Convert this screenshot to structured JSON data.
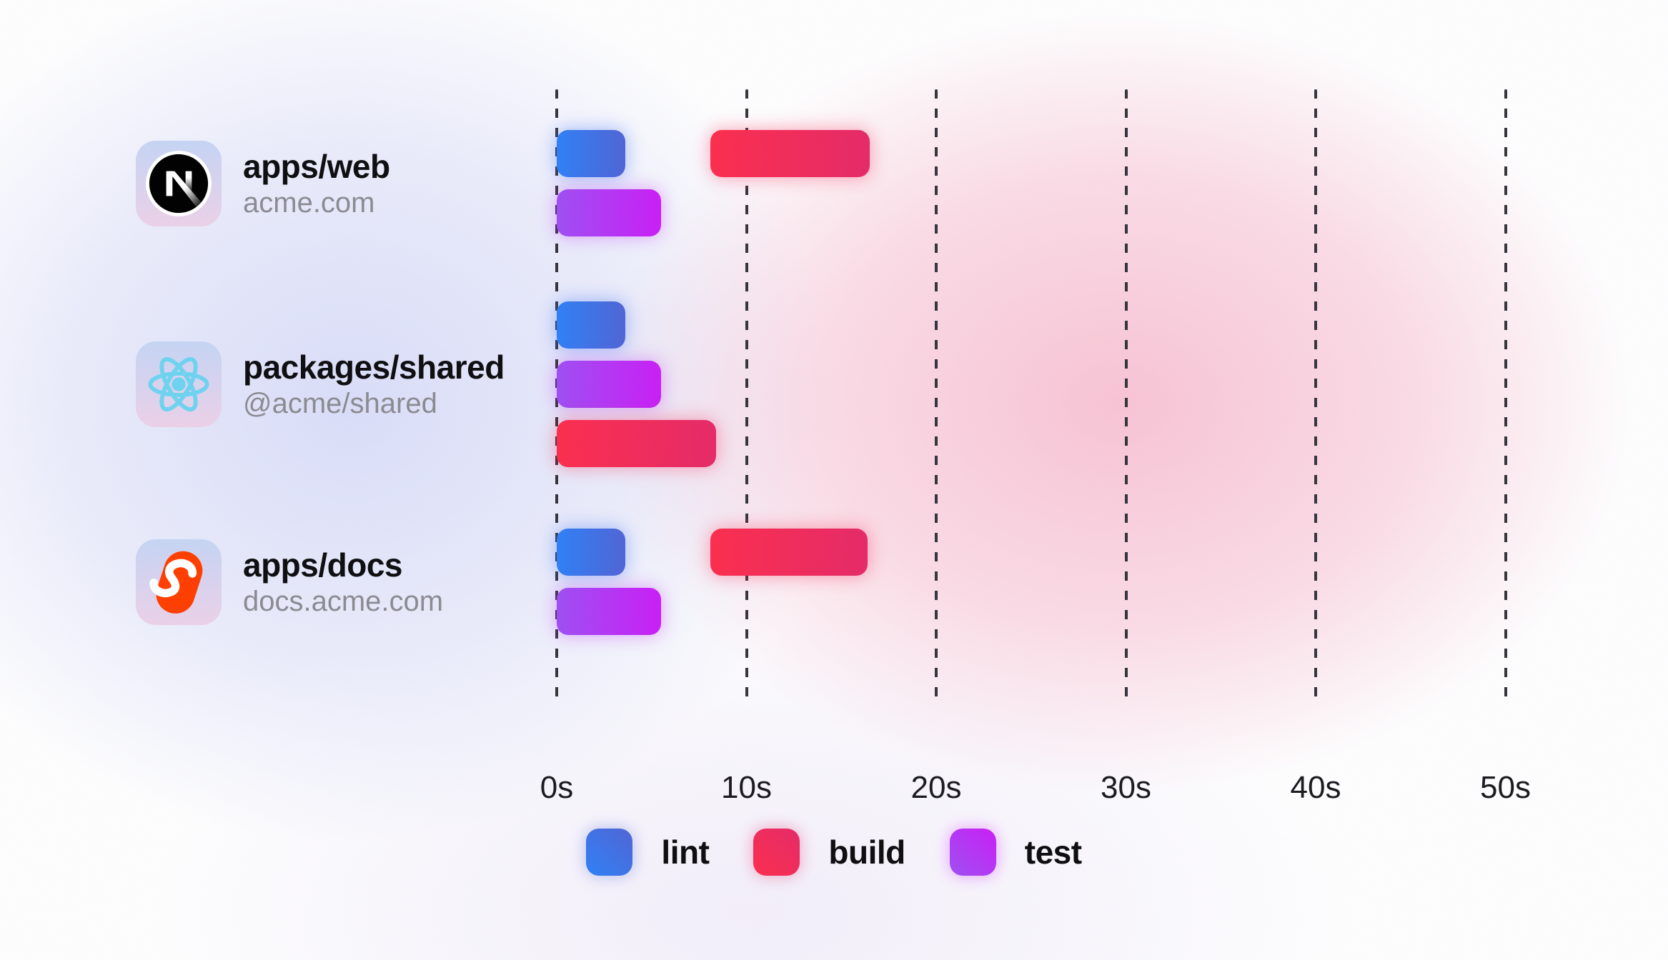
{
  "colors": {
    "lint": {
      "from": "#2f80f6",
      "to": "#5065d5"
    },
    "build": {
      "from": "#fb2e4e",
      "to": "#e52a68"
    },
    "test": {
      "from": "#9e4ff2",
      "to": "#ca1ef6"
    },
    "gridline": "#35353b",
    "title_text": "#0e0e11",
    "subtitle_text": "#8b8b92",
    "axis_text": "#1a1a1f",
    "tile_from": "#c5d4f4",
    "tile_to": "#ebd1e8",
    "nextjs_black": "#000000",
    "react_cyan": "#6ed3f0",
    "svelte_orange": "#ff3e00"
  },
  "chart_data": {
    "type": "gantt",
    "x_unit": "seconds",
    "x_ticks": [
      "0s",
      "10s",
      "20s",
      "30s",
      "40s",
      "50s"
    ],
    "x_tick_step_s": 10,
    "x_max_s": 50,
    "gridlines": "dashed-vertical",
    "legend_position": "bottom",
    "legend": [
      "lint",
      "build",
      "test"
    ],
    "rows": [
      {
        "title": "apps/web",
        "subtitle": "acme.com",
        "icon": "nextjs",
        "tasks": [
          {
            "name": "lint",
            "start": 0,
            "end": 3.6,
            "track": 0
          },
          {
            "name": "build",
            "start": 8.1,
            "end": 16.5,
            "track": 0
          },
          {
            "name": "test",
            "start": 0,
            "end": 5.5,
            "track": 1
          }
        ]
      },
      {
        "title": "packages/shared",
        "subtitle": "@acme/shared",
        "icon": "react",
        "tasks": [
          {
            "name": "lint",
            "start": 0,
            "end": 3.6,
            "track": 0
          },
          {
            "name": "test",
            "start": 0,
            "end": 5.5,
            "track": 1
          },
          {
            "name": "build",
            "start": 0,
            "end": 8.4,
            "track": 2
          }
        ]
      },
      {
        "title": "apps/docs",
        "subtitle": "docs.acme.com",
        "icon": "svelte",
        "tasks": [
          {
            "name": "lint",
            "start": 0,
            "end": 3.6,
            "track": 0
          },
          {
            "name": "build",
            "start": 8.1,
            "end": 16.4,
            "track": 0
          },
          {
            "name": "test",
            "start": 0,
            "end": 5.5,
            "track": 1
          }
        ]
      }
    ]
  }
}
